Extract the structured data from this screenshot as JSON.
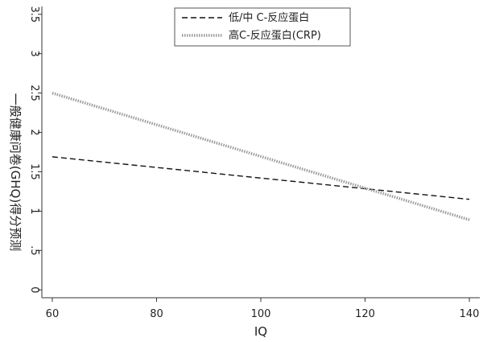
{
  "chart_data": {
    "type": "line",
    "xlabel": "IQ",
    "ylabel": "一般健康问卷(GHQ)得分预测",
    "xlim": [
      58,
      142
    ],
    "ylim": [
      -0.1,
      3.6
    ],
    "x_ticks": [
      {
        "value": 60,
        "label": "60"
      },
      {
        "value": 80,
        "label": "80"
      },
      {
        "value": 100,
        "label": "100"
      },
      {
        "value": 120,
        "label": "120"
      },
      {
        "value": 140,
        "label": "140"
      }
    ],
    "y_ticks": [
      {
        "value": 0,
        "label": "0"
      },
      {
        "value": 0.5,
        "label": ".5"
      },
      {
        "value": 1,
        "label": "1"
      },
      {
        "value": 1.5,
        "label": "1.5"
      },
      {
        "value": 2,
        "label": "2"
      },
      {
        "value": 2.5,
        "label": "2.5"
      },
      {
        "value": 3,
        "label": "3"
      },
      {
        "value": 3.5,
        "label": "3.5"
      }
    ],
    "grid": false,
    "legend_position": "top-center",
    "series": [
      {
        "name": "低/中 C-反应蛋白",
        "style": "dashed",
        "color": "#111111",
        "x": [
          60,
          140
        ],
        "y": [
          1.69,
          1.15
        ]
      },
      {
        "name": "高C-反应蛋白(CRP)",
        "style": "dotted",
        "color": "#9a9a9a",
        "x": [
          60,
          140
        ],
        "y": [
          2.5,
          0.89
        ]
      }
    ]
  }
}
